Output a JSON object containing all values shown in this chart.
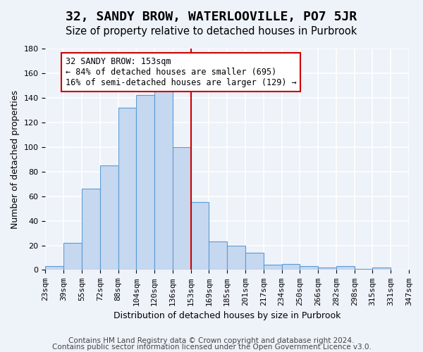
{
  "title": "32, SANDY BROW, WATERLOOVILLE, PO7 5JR",
  "subtitle": "Size of property relative to detached houses in Purbrook",
  "xlabel": "Distribution of detached houses by size in Purbrook",
  "ylabel": "Number of detached properties",
  "bin_labels": [
    "23sqm",
    "39sqm",
    "55sqm",
    "72sqm",
    "88sqm",
    "104sqm",
    "120sqm",
    "136sqm",
    "153sqm",
    "169sqm",
    "185sqm",
    "201sqm",
    "217sqm",
    "234sqm",
    "250sqm",
    "266sqm",
    "282sqm",
    "298sqm",
    "315sqm",
    "331sqm",
    "347sqm"
  ],
  "bar_heights": [
    3,
    22,
    66,
    85,
    132,
    142,
    149,
    100,
    55,
    23,
    20,
    14,
    4,
    5,
    3,
    2,
    3,
    1,
    2,
    0
  ],
  "bar_color": "#c5d8f0",
  "bar_edge_color": "#5b9bd5",
  "property_line_x": 8,
  "annotation_text": "32 SANDY BROW: 153sqm\n← 84% of detached houses are smaller (695)\n16% of semi-detached houses are larger (129) →",
  "annotation_box_color": "#ffffff",
  "annotation_box_edge": "#cc0000",
  "vline_color": "#cc0000",
  "footer_line1": "Contains HM Land Registry data © Crown copyright and database right 2024.",
  "footer_line2": "Contains public sector information licensed under the Open Government Licence v3.0.",
  "ylim": [
    0,
    180
  ],
  "yticks": [
    0,
    20,
    40,
    60,
    80,
    100,
    120,
    140,
    160,
    180
  ],
  "background_color": "#eef2f9",
  "grid_color": "#ffffff",
  "title_fontsize": 13,
  "subtitle_fontsize": 10.5,
  "axis_label_fontsize": 9,
  "tick_fontsize": 8,
  "footer_fontsize": 7.5
}
